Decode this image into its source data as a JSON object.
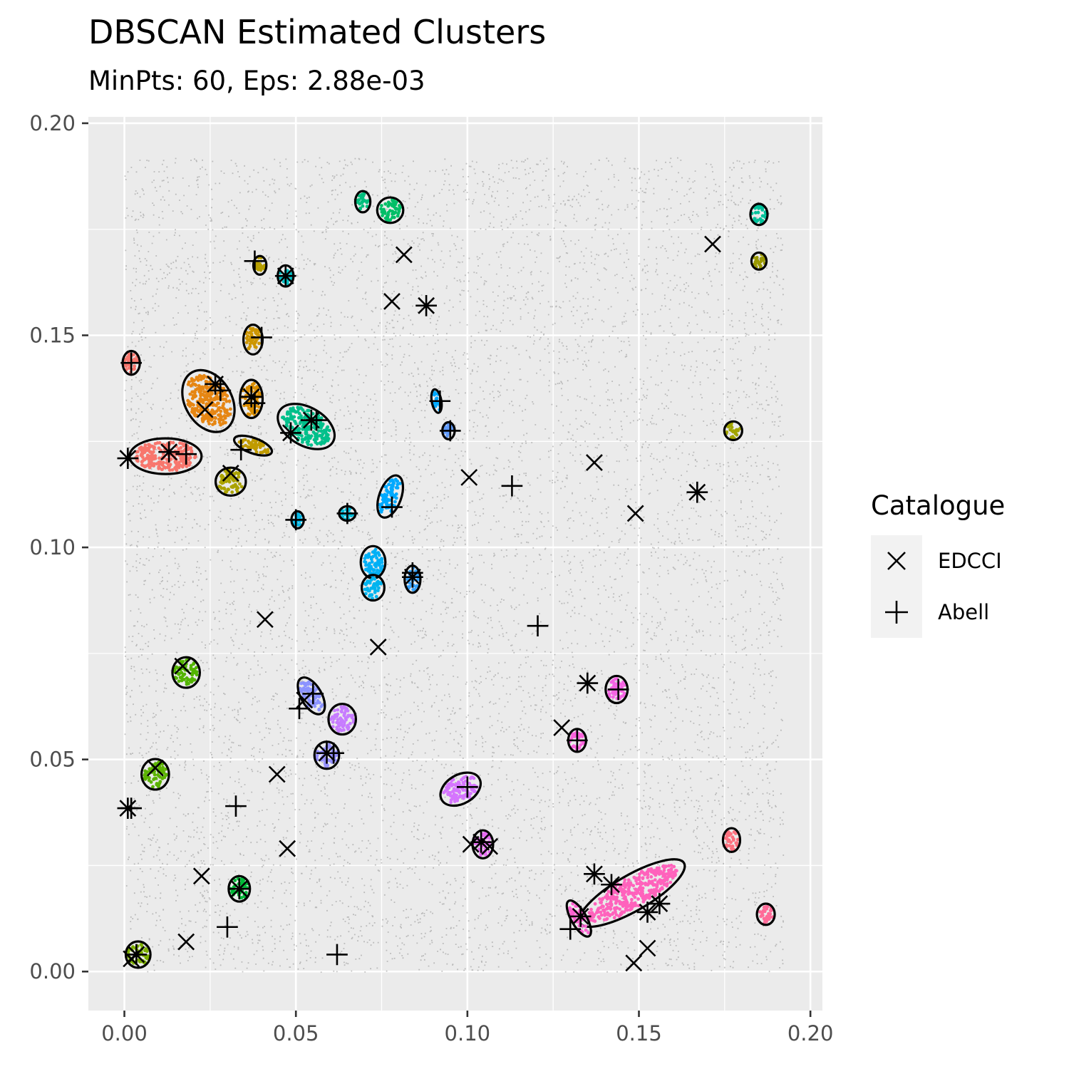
{
  "chart_data": {
    "type": "scatter",
    "title": "DBSCAN Estimated Clusters",
    "subtitle": "MinPts: 60, Eps: 2.88e-03",
    "xlim": [
      -0.0105,
      0.2035
    ],
    "ylim": [
      -0.0092,
      0.2015
    ],
    "x_ticks": [
      "0.00",
      "0.05",
      "0.10",
      "0.15",
      "0.20"
    ],
    "y_ticks": [
      "0.00",
      "0.05",
      "0.10",
      "0.15",
      "0.20"
    ],
    "grid": true,
    "background_points": {
      "color": "#7f7f7f",
      "x_range": [
        0,
        0.192
      ],
      "y_range": [
        0,
        0.192
      ]
    },
    "clusters": [
      {
        "x": 0.0695,
        "y": 0.1815,
        "rx": 0.0022,
        "ry": 0.0025,
        "angle": 0,
        "color": "#00bf7d"
      },
      {
        "x": 0.0775,
        "y": 0.1795,
        "rx": 0.0038,
        "ry": 0.003,
        "angle": 0,
        "color": "#00be67"
      },
      {
        "x": 0.185,
        "y": 0.1785,
        "rx": 0.0025,
        "ry": 0.0025,
        "angle": 0,
        "color": "#00c19a"
      },
      {
        "x": 0.185,
        "y": 0.1675,
        "rx": 0.0022,
        "ry": 0.002,
        "angle": 0,
        "color": "#999800"
      },
      {
        "x": 0.0395,
        "y": 0.1665,
        "rx": 0.0019,
        "ry": 0.0022,
        "angle": 0,
        "color": "#b79f00"
      },
      {
        "x": 0.047,
        "y": 0.164,
        "rx": 0.0023,
        "ry": 0.0025,
        "angle": 0,
        "color": "#00bfc4"
      },
      {
        "x": 0.0375,
        "y": 0.149,
        "rx": 0.0028,
        "ry": 0.0035,
        "angle": 0,
        "color": "#cd9600"
      },
      {
        "x": 0.002,
        "y": 0.1435,
        "rx": 0.0025,
        "ry": 0.0028,
        "angle": 0,
        "color": "#f8766d"
      },
      {
        "x": 0.0245,
        "y": 0.1345,
        "rx": 0.0068,
        "ry": 0.0078,
        "angle": 30,
        "color": "#e68613"
      },
      {
        "x": 0.037,
        "y": 0.135,
        "rx": 0.0033,
        "ry": 0.0045,
        "angle": 0,
        "color": "#db8e00"
      },
      {
        "x": 0.053,
        "y": 0.1285,
        "rx": 0.009,
        "ry": 0.0045,
        "angle": -30,
        "color": "#00c08b"
      },
      {
        "x": 0.0375,
        "y": 0.124,
        "rx": 0.0058,
        "ry": 0.0018,
        "angle": -20,
        "color": "#c09b00"
      },
      {
        "x": 0.012,
        "y": 0.1215,
        "rx": 0.0105,
        "ry": 0.0042,
        "angle": 0,
        "color": "#f8766d"
      },
      {
        "x": 0.091,
        "y": 0.1345,
        "rx": 0.0014,
        "ry": 0.0028,
        "angle": 10,
        "color": "#00a9ff"
      },
      {
        "x": 0.0945,
        "y": 0.1275,
        "rx": 0.0018,
        "ry": 0.002,
        "angle": 0,
        "color": "#619cff"
      },
      {
        "x": 0.031,
        "y": 0.1155,
        "rx": 0.0044,
        "ry": 0.0033,
        "angle": 0,
        "color": "#aba300"
      },
      {
        "x": 0.0775,
        "y": 0.112,
        "rx": 0.0032,
        "ry": 0.0052,
        "angle": -20,
        "color": "#00a9ff"
      },
      {
        "x": 0.0505,
        "y": 0.1065,
        "rx": 0.0018,
        "ry": 0.002,
        "angle": 0,
        "color": "#00b8e7"
      },
      {
        "x": 0.065,
        "y": 0.108,
        "rx": 0.0024,
        "ry": 0.0017,
        "angle": 0,
        "color": "#00bcd8"
      },
      {
        "x": 0.0725,
        "y": 0.0965,
        "rx": 0.0036,
        "ry": 0.0038,
        "angle": 0,
        "color": "#00b0f6"
      },
      {
        "x": 0.0725,
        "y": 0.0905,
        "rx": 0.0033,
        "ry": 0.003,
        "angle": 0,
        "color": "#00b4ef"
      },
      {
        "x": 0.084,
        "y": 0.0925,
        "rx": 0.0023,
        "ry": 0.0032,
        "angle": 0,
        "color": "#35a2ff"
      },
      {
        "x": 0.018,
        "y": 0.0705,
        "rx": 0.004,
        "ry": 0.0036,
        "angle": 0,
        "color": "#53b400"
      },
      {
        "x": 0.0545,
        "y": 0.065,
        "rx": 0.003,
        "ry": 0.0048,
        "angle": 30,
        "color": "#8b93ff"
      },
      {
        "x": 0.0635,
        "y": 0.0595,
        "rx": 0.004,
        "ry": 0.0036,
        "angle": 0,
        "color": "#c77cff"
      },
      {
        "x": 0.059,
        "y": 0.051,
        "rx": 0.0036,
        "ry": 0.0032,
        "angle": 0,
        "color": "#9590ff"
      },
      {
        "x": 0.009,
        "y": 0.0465,
        "rx": 0.004,
        "ry": 0.0036,
        "angle": 0,
        "color": "#5bb300"
      },
      {
        "x": 0.098,
        "y": 0.043,
        "rx": 0.0063,
        "ry": 0.0034,
        "angle": 30,
        "color": "#d575fe"
      },
      {
        "x": 0.1045,
        "y": 0.03,
        "rx": 0.003,
        "ry": 0.0033,
        "angle": 0,
        "color": "#e76bf3"
      },
      {
        "x": 0.1435,
        "y": 0.0665,
        "rx": 0.0032,
        "ry": 0.0032,
        "angle": 0,
        "color": "#f564e3"
      },
      {
        "x": 0.132,
        "y": 0.0545,
        "rx": 0.0026,
        "ry": 0.0027,
        "angle": 0,
        "color": "#fa62db"
      },
      {
        "x": 0.148,
        "y": 0.0185,
        "rx": 0.0175,
        "ry": 0.0042,
        "angle": 30,
        "color": "#ff62bc"
      },
      {
        "x": 0.1325,
        "y": 0.0125,
        "rx": 0.0022,
        "ry": 0.0048,
        "angle": 30,
        "color": "#fd61d1"
      },
      {
        "x": 0.1775,
        "y": 0.1275,
        "rx": 0.0026,
        "ry": 0.0022,
        "angle": 0,
        "color": "#a3a500"
      },
      {
        "x": 0.177,
        "y": 0.031,
        "rx": 0.0025,
        "ry": 0.0028,
        "angle": 0,
        "color": "#fc717f"
      },
      {
        "x": 0.187,
        "y": 0.0135,
        "rx": 0.0026,
        "ry": 0.0025,
        "angle": 0,
        "color": "#ff6a98"
      },
      {
        "x": 0.0335,
        "y": 0.0195,
        "rx": 0.0031,
        "ry": 0.003,
        "angle": 0,
        "color": "#00ba38"
      },
      {
        "x": 0.004,
        "y": 0.004,
        "rx": 0.0036,
        "ry": 0.0031,
        "angle": 0,
        "color": "#7cae00"
      }
    ],
    "legend": {
      "title": "Catalogue",
      "entries": [
        {
          "label": "EDCCI",
          "shape": "x"
        },
        {
          "label": "Abell",
          "shape": "+"
        }
      ],
      "position": "right"
    },
    "series": [
      {
        "name": "EDCCI",
        "shape": "x",
        "x": [
          0.0815,
          0.078,
          0.1715,
          0.1005,
          0.137,
          0.149,
          0.041,
          0.074,
          0.031,
          0.0525,
          0.0445,
          0.0475,
          0.0225,
          0.018,
          0.1525,
          0.1485,
          0.1275,
          0.101,
          0.002,
          0.017,
          0.009,
          0.0235,
          0.1065,
          0.088,
          0.167,
          0.001,
          0.001,
          0.013,
          0.0265,
          0.0485,
          0.037,
          0.0545,
          0.135,
          0.104,
          0.137,
          0.142,
          0.1525,
          0.156,
          0.133,
          0.084,
          0.047,
          0.0335,
          0.0035,
          0.059
        ],
        "y": [
          0.169,
          0.158,
          0.1715,
          0.1165,
          0.12,
          0.108,
          0.083,
          0.0765,
          0.1175,
          0.064,
          0.0465,
          0.029,
          0.0225,
          0.007,
          0.0055,
          0.002,
          0.0575,
          0.03,
          0.003,
          0.072,
          0.048,
          0.1325,
          0.0295,
          0.157,
          0.113,
          0.121,
          0.0385,
          0.1225,
          0.1385,
          0.127,
          0.1355,
          0.13,
          0.068,
          0.0305,
          0.023,
          0.0205,
          0.014,
          0.016,
          0.013,
          0.093,
          0.164,
          0.0195,
          0.004,
          0.0515
        ]
      },
      {
        "name": "Abell",
        "shape": "+",
        "x": [
          0.038,
          0.04,
          0.002,
          0.018,
          0.028,
          0.038,
          0.056,
          0.092,
          0.095,
          0.05,
          0.065,
          0.078,
          0.113,
          0.1205,
          0.084,
          0.051,
          0.055,
          0.061,
          0.0325,
          0.062,
          0.002,
          0.1,
          0.03,
          0.034,
          0.144,
          0.132,
          0.13,
          0.088,
          0.167,
          0.001,
          0.001,
          0.013,
          0.0265,
          0.0485,
          0.037,
          0.0545,
          0.135,
          0.104,
          0.137,
          0.142,
          0.1525,
          0.156,
          0.133,
          0.084,
          0.047,
          0.0335,
          0.0035,
          0.059
        ],
        "y": [
          0.1675,
          0.1495,
          0.1435,
          0.122,
          0.137,
          0.134,
          0.13,
          0.1345,
          0.1275,
          0.1065,
          0.108,
          0.1095,
          0.1145,
          0.0815,
          0.094,
          0.062,
          0.0655,
          0.0515,
          0.039,
          0.004,
          0.0385,
          0.0435,
          0.0105,
          0.123,
          0.0665,
          0.0545,
          0.01,
          0.157,
          0.113,
          0.121,
          0.0385,
          0.1225,
          0.1385,
          0.127,
          0.1355,
          0.13,
          0.068,
          0.0305,
          0.023,
          0.0205,
          0.014,
          0.016,
          0.013,
          0.093,
          0.164,
          0.0195,
          0.004,
          0.0515
        ]
      }
    ]
  }
}
